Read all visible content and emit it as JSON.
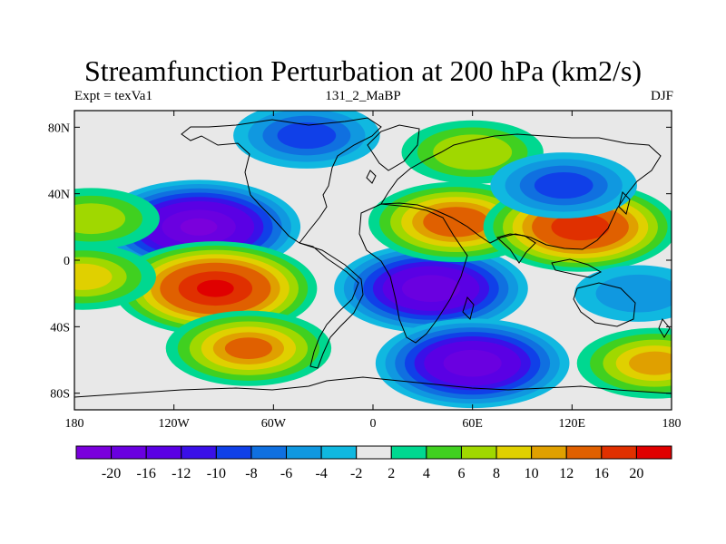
{
  "title": "Streamfunction Perturbation at 200 hPa (km2/s)",
  "left_string": "Expt = texVa1",
  "center_string": "131_2_MaBP",
  "right_string": "DJF",
  "map": {
    "projection": "cylindrical-equidistant",
    "lon_range": [
      -180,
      180
    ],
    "lat_range": [
      -90,
      90
    ],
    "x_tick_values": [
      -180,
      -120,
      -60,
      0,
      60,
      120,
      180
    ],
    "x_tick_labels": [
      "180",
      "120W",
      "60W",
      "0",
      "60E",
      "120E",
      "180"
    ],
    "y_tick_values": [
      80,
      40,
      0,
      -40,
      -80
    ],
    "y_tick_labels": [
      "80N",
      "40N",
      "0",
      "40S",
      "80S"
    ],
    "field_features": [
      {
        "lon": -105,
        "lat": 20,
        "value": -20
      },
      {
        "lon": -95,
        "lat": -17,
        "value": 20
      },
      {
        "lon": 35,
        "lat": -17,
        "value": -18
      },
      {
        "lon": 60,
        "lat": -62,
        "value": -18
      },
      {
        "lon": 50,
        "lat": 23,
        "value": 14
      },
      {
        "lon": 125,
        "lat": 20,
        "value": 18
      },
      {
        "lon": -75,
        "lat": -53,
        "value": 12
      },
      {
        "lon": -40,
        "lat": 75,
        "value": -8
      },
      {
        "lon": 60,
        "lat": 65,
        "value": 7
      },
      {
        "lon": 115,
        "lat": 45,
        "value": -8
      },
      {
        "lon": -170,
        "lat": 25,
        "value": 6
      },
      {
        "lon": -175,
        "lat": -10,
        "value": 8
      },
      {
        "lon": 170,
        "lat": -62,
        "value": 10
      },
      {
        "lon": 160,
        "lat": -20,
        "value": -4
      }
    ]
  },
  "colorbar": {
    "colors": [
      "#7a00dc",
      "#6a00e0",
      "#5a00e4",
      "#3a10e8",
      "#1040e8",
      "#1070e0",
      "#1098e0",
      "#10b8e0",
      "#e8e8e8",
      "#00d890",
      "#40d020",
      "#a0d800",
      "#e0d000",
      "#e0a000",
      "#e06000",
      "#e03000",
      "#e00000"
    ],
    "labels": [
      "-20",
      "-16",
      "-12",
      "-10",
      "-8",
      "-6",
      "-4",
      "-2",
      "2",
      "4",
      "6",
      "8",
      "10",
      "12",
      "16",
      "20"
    ]
  }
}
